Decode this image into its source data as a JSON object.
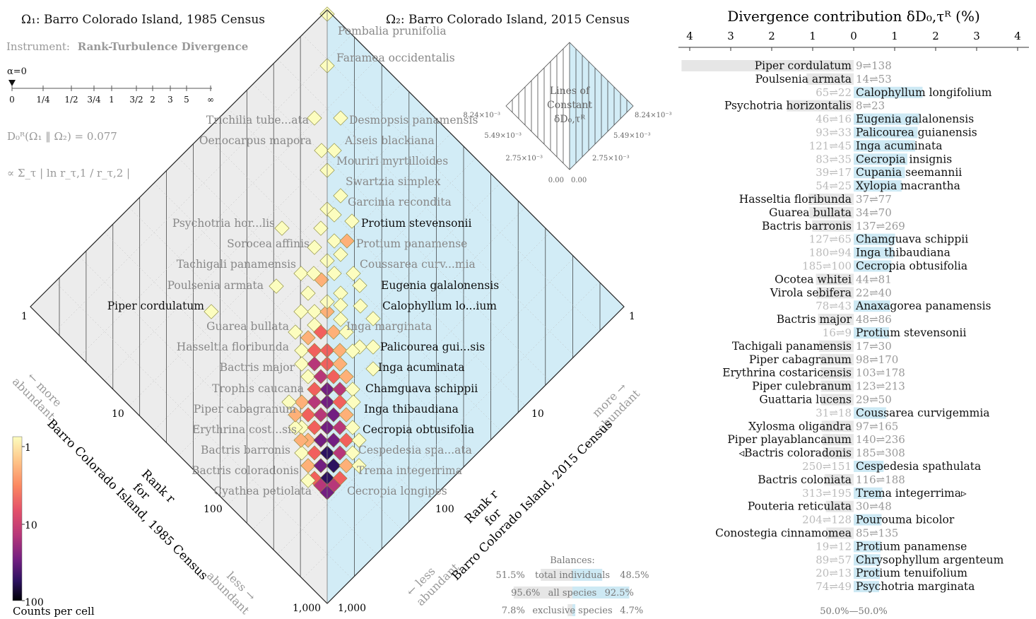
{
  "titles": {
    "left": "Ω₁: Barro Colorado Island, 1985 Census",
    "right": "Ω₂: Barro Colorado Island, 2015 Census",
    "instrument_prefix": "Instrument:",
    "instrument_name": "Rank-Turbulence Divergence",
    "alpha_label": "α=0",
    "divergence_formula": "D₀ᴿ(Ω₁ ‖ Ω₂) = 0.077",
    "proportional_formula": "∝ Σ_τ | ln r_τ,1 / r_τ,2 |",
    "panel_title": "Divergence contribution δD₀,τᴿ (%)"
  },
  "alpha_scale": [
    "0",
    "1/4",
    "1/2",
    "3/4",
    "1",
    "3/2",
    "2",
    "3",
    "5",
    "∞"
  ],
  "axes": {
    "left_label_line1": "Rank r",
    "left_label_line2": "for",
    "left_label_line3": "Barro Colorado Island, 1985 Census",
    "right_label_line1": "Rank r",
    "right_label_line2": "for",
    "right_label_line3": "Barro Colorado Island, 2015 Census",
    "more_abundant_left_1": "← more",
    "more_abundant_left_2": "abundant",
    "more_abundant_right_1": "more →",
    "more_abundant_right_2": "abundant",
    "less_abundant_left_1": "less →",
    "less_abundant_left_2": "abundant",
    "less_abundant_right_1": "← less",
    "less_abundant_right_2": "abundant",
    "ticks": [
      "1",
      "10",
      "100",
      "1,000"
    ]
  },
  "contour_box": {
    "title_1": "Lines of",
    "title_2": "Constant",
    "title_3": "δD₀,τᴿ",
    "left_ticks": [
      "8.24×10⁻³",
      "5.49×10⁻³",
      "2.75×10⁻³",
      "0.00"
    ],
    "right_ticks": [
      "8.24×10⁻³",
      "5.49×10⁻³",
      "2.75×10⁻³",
      "0.00"
    ]
  },
  "colorbar": {
    "title": "Counts per cell",
    "ticks": [
      "1",
      "10",
      "100"
    ],
    "colors": [
      "#fcfdbf",
      "#feb078",
      "#f1605d",
      "#b73779",
      "#721f81",
      "#2c115f",
      "#000004"
    ]
  },
  "balances": {
    "title": "Balances:",
    "rows": [
      {
        "left": "51.5%",
        "label": "total individuals",
        "right": "48.5%",
        "left_frac": 0.515,
        "right_frac": 0.485
      },
      {
        "left": "95.6%",
        "label": "all species",
        "right": "92.5%",
        "left_frac": 0.956,
        "right_frac": 0.925
      },
      {
        "left": "7.8%",
        "label": "exclusive species",
        "right": "4.7%",
        "left_frac": 0.078,
        "right_frac": 0.047
      }
    ]
  },
  "chart_data": {
    "type": "bar",
    "title": "Divergence contribution δD₀,τᴿ (%)",
    "x_ticks": [
      "4",
      "3",
      "2",
      "1",
      "0",
      "1",
      "2",
      "3",
      "4"
    ],
    "xlim": [
      -4,
      4
    ],
    "footer": "50.0%—50.0%",
    "bars": [
      {
        "name": "Piper cordulatum",
        "rank": "9⇌138",
        "side": "left",
        "value": 4.2,
        "highlight": true,
        "split": 0
      },
      {
        "name": "Poulsenia armata",
        "rank": "14⇌53",
        "side": "left",
        "value": 1.15,
        "highlight": true,
        "split": 0
      },
      {
        "name": "Calophyllum longifolium",
        "rank": "65⇌22",
        "side": "right",
        "value": 1.68,
        "highlight": false,
        "split": 10
      },
      {
        "name": "Psychotria horizontalis",
        "rank": "8⇌23",
        "side": "left",
        "value": 1.63,
        "highlight": true,
        "split": 13
      },
      {
        "name": "Eugenia galalonensis",
        "rank": "46⇌16",
        "side": "right",
        "value": 1.6,
        "highlight": false,
        "split": 12
      },
      {
        "name": "Palicourea guianensis",
        "rank": "93⇌33",
        "side": "right",
        "value": 1.56,
        "highlight": false,
        "split": 10
      },
      {
        "name": "Inga acuminata",
        "rank": "121⇌45",
        "side": "right",
        "value": 1.5,
        "highlight": false,
        "split": 4
      },
      {
        "name": "Cecropia insignis",
        "rank": "83⇌35",
        "side": "right",
        "value": 1.31,
        "highlight": false,
        "split": 8
      },
      {
        "name": "Cupania seemannii",
        "rank": "39⇌17",
        "side": "right",
        "value": 1.25,
        "highlight": false,
        "split": 7
      },
      {
        "name": "Xylopia macrantha",
        "rank": "54⇌25",
        "side": "right",
        "value": 1.17,
        "highlight": false,
        "split": 7
      },
      {
        "name": "Hasseltia floribunda",
        "rank": "37⇌77",
        "side": "left",
        "value": 1.1,
        "highlight": true,
        "split": 0
      },
      {
        "name": "Guarea bullata",
        "rank": "34⇌70",
        "side": "left",
        "value": 1.08,
        "highlight": true,
        "split": 0
      },
      {
        "name": "Bactris barronis",
        "rank": "137⇌269",
        "side": "left",
        "value": 1.01,
        "highlight": true,
        "split": 0
      },
      {
        "name": "Chamguava schippii",
        "rank": "127⇌65",
        "side": "right",
        "value": 1.01,
        "highlight": false,
        "split": 6
      },
      {
        "name": "Inga thibaudiana",
        "rank": "180⇌94",
        "side": "right",
        "value": 0.97,
        "highlight": false,
        "split": 5
      },
      {
        "name": "Cecropia obtusifolia",
        "rank": "185⇌100",
        "side": "right",
        "value": 0.92,
        "highlight": false,
        "split": 8
      },
      {
        "name": "Ocotea whitei",
        "rank": "44⇌81",
        "side": "left",
        "value": 0.92,
        "highlight": true,
        "split": 0
      },
      {
        "name": "Virola sebifera",
        "rank": "22⇌40",
        "side": "left",
        "value": 0.9,
        "highlight": true,
        "split": 0
      },
      {
        "name": "Anaxagorea panamensis",
        "rank": "78⇌43",
        "side": "right",
        "value": 0.89,
        "highlight": false,
        "split": 6
      },
      {
        "name": "Bactris major",
        "rank": "48⇌86",
        "side": "left",
        "value": 0.87,
        "highlight": true,
        "split": 0
      },
      {
        "name": "Protium stevensonii",
        "rank": "16⇌9",
        "side": "right",
        "value": 0.86,
        "highlight": false,
        "split": 7
      },
      {
        "name": "Tachigali panamensis",
        "rank": "17⇌30",
        "side": "left",
        "value": 0.85,
        "highlight": true,
        "split": 0
      },
      {
        "name": "Piper cabagranum",
        "rank": "98⇌170",
        "side": "left",
        "value": 0.82,
        "highlight": true,
        "split": 0
      },
      {
        "name": "Erythrina costaricensis",
        "rank": "103⇌178",
        "side": "left",
        "value": 0.81,
        "highlight": true,
        "split": 0
      },
      {
        "name": "Piper culebranum",
        "rank": "123⇌213",
        "side": "left",
        "value": 0.8,
        "highlight": true,
        "split": 0
      },
      {
        "name": "Guattaria lucens",
        "rank": "29⇌50",
        "side": "left",
        "value": 0.8,
        "highlight": true,
        "split": 0
      },
      {
        "name": "Coussarea curvigemmia",
        "rank": "31⇌18",
        "side": "right",
        "value": 0.79,
        "highlight": false,
        "split": 5
      },
      {
        "name": "Xylosma oligandra",
        "rank": "97⇌165",
        "side": "left",
        "value": 0.78,
        "highlight": true,
        "split": 0
      },
      {
        "name": "Piper playablancanum",
        "rank": "140⇌236",
        "side": "left",
        "value": 0.76,
        "highlight": true,
        "split": 0
      },
      {
        "name": "◃Bactris coloradonis",
        "rank": "185⇌308",
        "side": "left",
        "value": 0.74,
        "highlight": true,
        "split": 0
      },
      {
        "name": "Cespedesia spathulata",
        "rank": "250⇌151",
        "side": "right",
        "value": 0.73,
        "highlight": false,
        "split": 4
      },
      {
        "name": "Bactris coloniata",
        "rank": "116⇌188",
        "side": "left",
        "value": 0.71,
        "highlight": true,
        "split": 0
      },
      {
        "name": "Trema integerrima▹",
        "rank": "313⇌195",
        "side": "right",
        "value": 0.7,
        "highlight": false,
        "split": 4
      },
      {
        "name": "Pouteria reticulata",
        "rank": "30⇌48",
        "side": "left",
        "value": 0.68,
        "highlight": true,
        "split": 0
      },
      {
        "name": "Pourouma bicolor",
        "rank": "204⇌128",
        "side": "right",
        "value": 0.68,
        "highlight": false,
        "split": 4
      },
      {
        "name": "Conostegia cinnamomea",
        "rank": "85⇌135",
        "side": "left",
        "value": 0.67,
        "highlight": true,
        "split": 0
      },
      {
        "name": "Protium panamense",
        "rank": "19⇌12",
        "side": "right",
        "value": 0.66,
        "highlight": false,
        "split": 6
      },
      {
        "name": "Chrysophyllum argenteum",
        "rank": "89⇌57",
        "side": "right",
        "value": 0.65,
        "highlight": false,
        "split": 6
      },
      {
        "name": "Protium tenuifolium",
        "rank": "20⇌13",
        "side": "right",
        "value": 0.64,
        "highlight": false,
        "split": 7
      },
      {
        "name": "Psychotria marginata",
        "rank": "74⇌49",
        "side": "right",
        "value": 0.62,
        "highlight": false,
        "split": 5
      }
    ],
    "diamond_labels_left": [
      {
        "name": "Trichilia tube...ata",
        "r1": 30,
        "r2": 28,
        "dark": false
      },
      {
        "name": "Oenocarpus mapora",
        "r1": 40,
        "r2": 36,
        "dark": false
      },
      {
        "name": "Psychotria hor...lis",
        "r1": 8,
        "r2": 23,
        "dark": false
      },
      {
        "name": "Sorocea affinis",
        "r1": 60,
        "r2": 55,
        "dark": false
      },
      {
        "name": "Tachigali panamensis",
        "r1": 17,
        "r2": 30,
        "dark": false
      },
      {
        "name": "Poulsenia armata",
        "r1": 14,
        "r2": 53,
        "dark": false
      },
      {
        "name": "Piper cordulatum",
        "r1": 9,
        "r2": 138,
        "dark": true
      },
      {
        "name": "Guarea bullata",
        "r1": 34,
        "r2": 70,
        "dark": false
      },
      {
        "name": "Hasseltia floribunda",
        "r1": 37,
        "r2": 77,
        "dark": false
      },
      {
        "name": "Bactris major",
        "r1": 48,
        "r2": 86,
        "dark": false
      },
      {
        "name": "Trophis caucana",
        "r1": 70,
        "r2": 110,
        "dark": false
      },
      {
        "name": "Piper cabagranum",
        "r1": 98,
        "r2": 170,
        "dark": false
      },
      {
        "name": "Erythrina cost...sis",
        "r1": 103,
        "r2": 178,
        "dark": false
      },
      {
        "name": "Bactris barronis",
        "r1": 137,
        "r2": 269,
        "dark": false
      },
      {
        "name": "Bactris coloradonis",
        "r1": 185,
        "r2": 308,
        "dark": false
      },
      {
        "name": "Cyathea petiolata",
        "r1": 300,
        "r2": 480,
        "dark": false
      }
    ],
    "diamond_labels_right": [
      {
        "name": "Pombalia prunifolia",
        "dark": false
      },
      {
        "name": "Faramea occidentalis",
        "dark": false
      },
      {
        "name": "Desmopsis panamensis",
        "dark": false
      },
      {
        "name": "Alseis blackiana",
        "dark": false
      },
      {
        "name": "Mouriri myrtilloides",
        "dark": false
      },
      {
        "name": "Swartzia simplex",
        "dark": false
      },
      {
        "name": "Garcinia recondita",
        "dark": false
      },
      {
        "name": "Protium stevensonii",
        "dark": true
      },
      {
        "name": "Protium panamense",
        "dark": false
      },
      {
        "name": "Coussarea curv...mia",
        "dark": false
      },
      {
        "name": "Eugenia galalonensis",
        "dark": true
      },
      {
        "name": "Calophyllum lo...ium",
        "dark": true
      },
      {
        "name": "Inga marginata",
        "dark": false
      },
      {
        "name": "Palicourea gui...sis",
        "dark": true
      },
      {
        "name": "Inga acuminata",
        "dark": true
      },
      {
        "name": "Chamguava schippii",
        "dark": true
      },
      {
        "name": "Inga thibaudiana",
        "dark": true
      },
      {
        "name": "Cecropia obtusifolia",
        "dark": true
      },
      {
        "name": "Cespedesia spa...ata",
        "dark": false
      },
      {
        "name": "Trema integerrima",
        "dark": false
      },
      {
        "name": "Cecropia longipes",
        "dark": false
      }
    ]
  }
}
